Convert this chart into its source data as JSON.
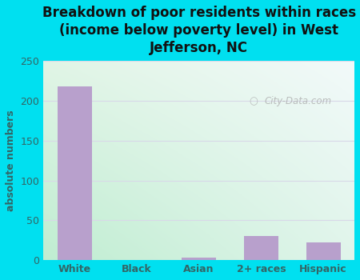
{
  "categories": [
    "White",
    "Black",
    "Asian",
    "2+ races",
    "Hispanic"
  ],
  "values": [
    218,
    0,
    3,
    30,
    22
  ],
  "bar_color": "#b8a0cc",
  "title": "Breakdown of poor residents within races\n(income below poverty level) in West\nJefferson, NC",
  "ylabel": "absolute numbers",
  "ylim": [
    0,
    250
  ],
  "yticks": [
    0,
    50,
    100,
    150,
    200,
    250
  ],
  "background_outer": "#00e0f0",
  "bg_topleft": "#c8ecd8",
  "bg_bottomleft": "#b8e4c8",
  "bg_topright": "#e8f4f8",
  "bg_bottomright": "#dceee8",
  "grid_color": "#d8d8e8",
  "watermark": "City-Data.com",
  "title_fontsize": 12,
  "ylabel_fontsize": 9,
  "tick_fontsize": 9,
  "tick_color": "#336666",
  "title_color": "#111111"
}
